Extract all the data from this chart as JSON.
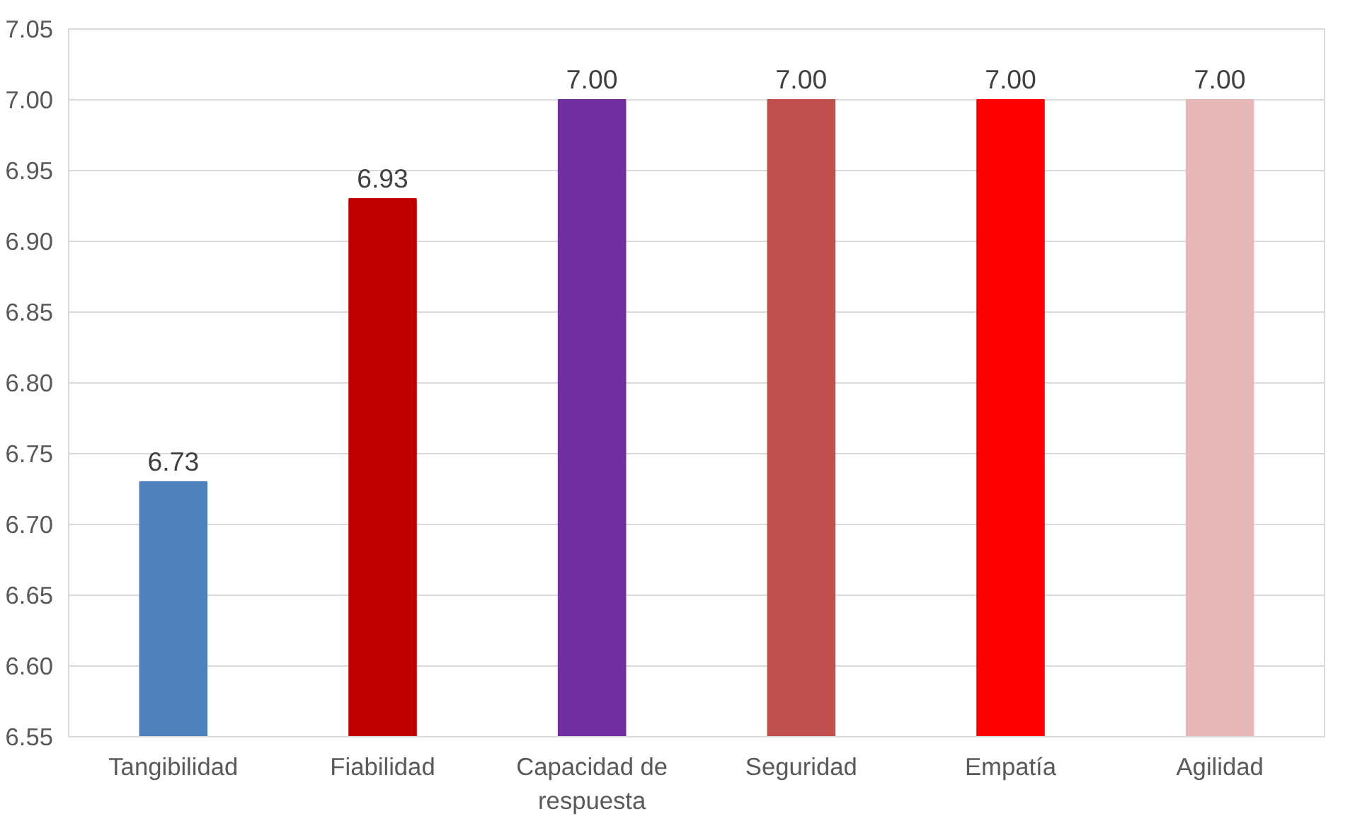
{
  "chart_data": {
    "type": "bar",
    "categories": [
      "Tangibilidad",
      "Fiabilidad",
      "Capacidad de respuesta",
      "Seguridad",
      "Empatía",
      "Agilidad"
    ],
    "values": [
      6.73,
      6.93,
      7.0,
      7.0,
      7.0,
      7.0
    ],
    "value_labels": [
      "6.73",
      "6.93",
      "7.00",
      "7.00",
      "7.00",
      "7.00"
    ],
    "colors": [
      "#4f81bd",
      "#c00000",
      "#7030a0",
      "#c0504d",
      "#ff0000",
      "#e6b9b8"
    ],
    "ylim": [
      6.55,
      7.05
    ],
    "yticks": [
      {
        "value": 6.55,
        "label": "6.55"
      },
      {
        "value": 6.6,
        "label": "6.60"
      },
      {
        "value": 6.65,
        "label": "6.65"
      },
      {
        "value": 6.7,
        "label": "6.70"
      },
      {
        "value": 6.75,
        "label": "6.75"
      },
      {
        "value": 6.8,
        "label": "6.80"
      },
      {
        "value": 6.85,
        "label": "6.85"
      },
      {
        "value": 6.9,
        "label": "6.90"
      },
      {
        "value": 6.95,
        "label": "6.95"
      },
      {
        "value": 7.0,
        "label": "7.00"
      },
      {
        "value": 7.05,
        "label": "7.05"
      }
    ],
    "grid": "y"
  }
}
